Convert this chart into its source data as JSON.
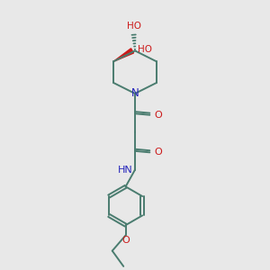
{
  "bg_color": "#e8e8e8",
  "bond_color": "#4a7c6f",
  "N_color": "#2525bb",
  "O_color": "#cc1a1a",
  "line_width": 1.4,
  "font_size": 7.5,
  "figsize": [
    3.0,
    3.0
  ],
  "dpi": 100,
  "xlim": [
    0,
    10
  ],
  "ylim": [
    0,
    10
  ]
}
